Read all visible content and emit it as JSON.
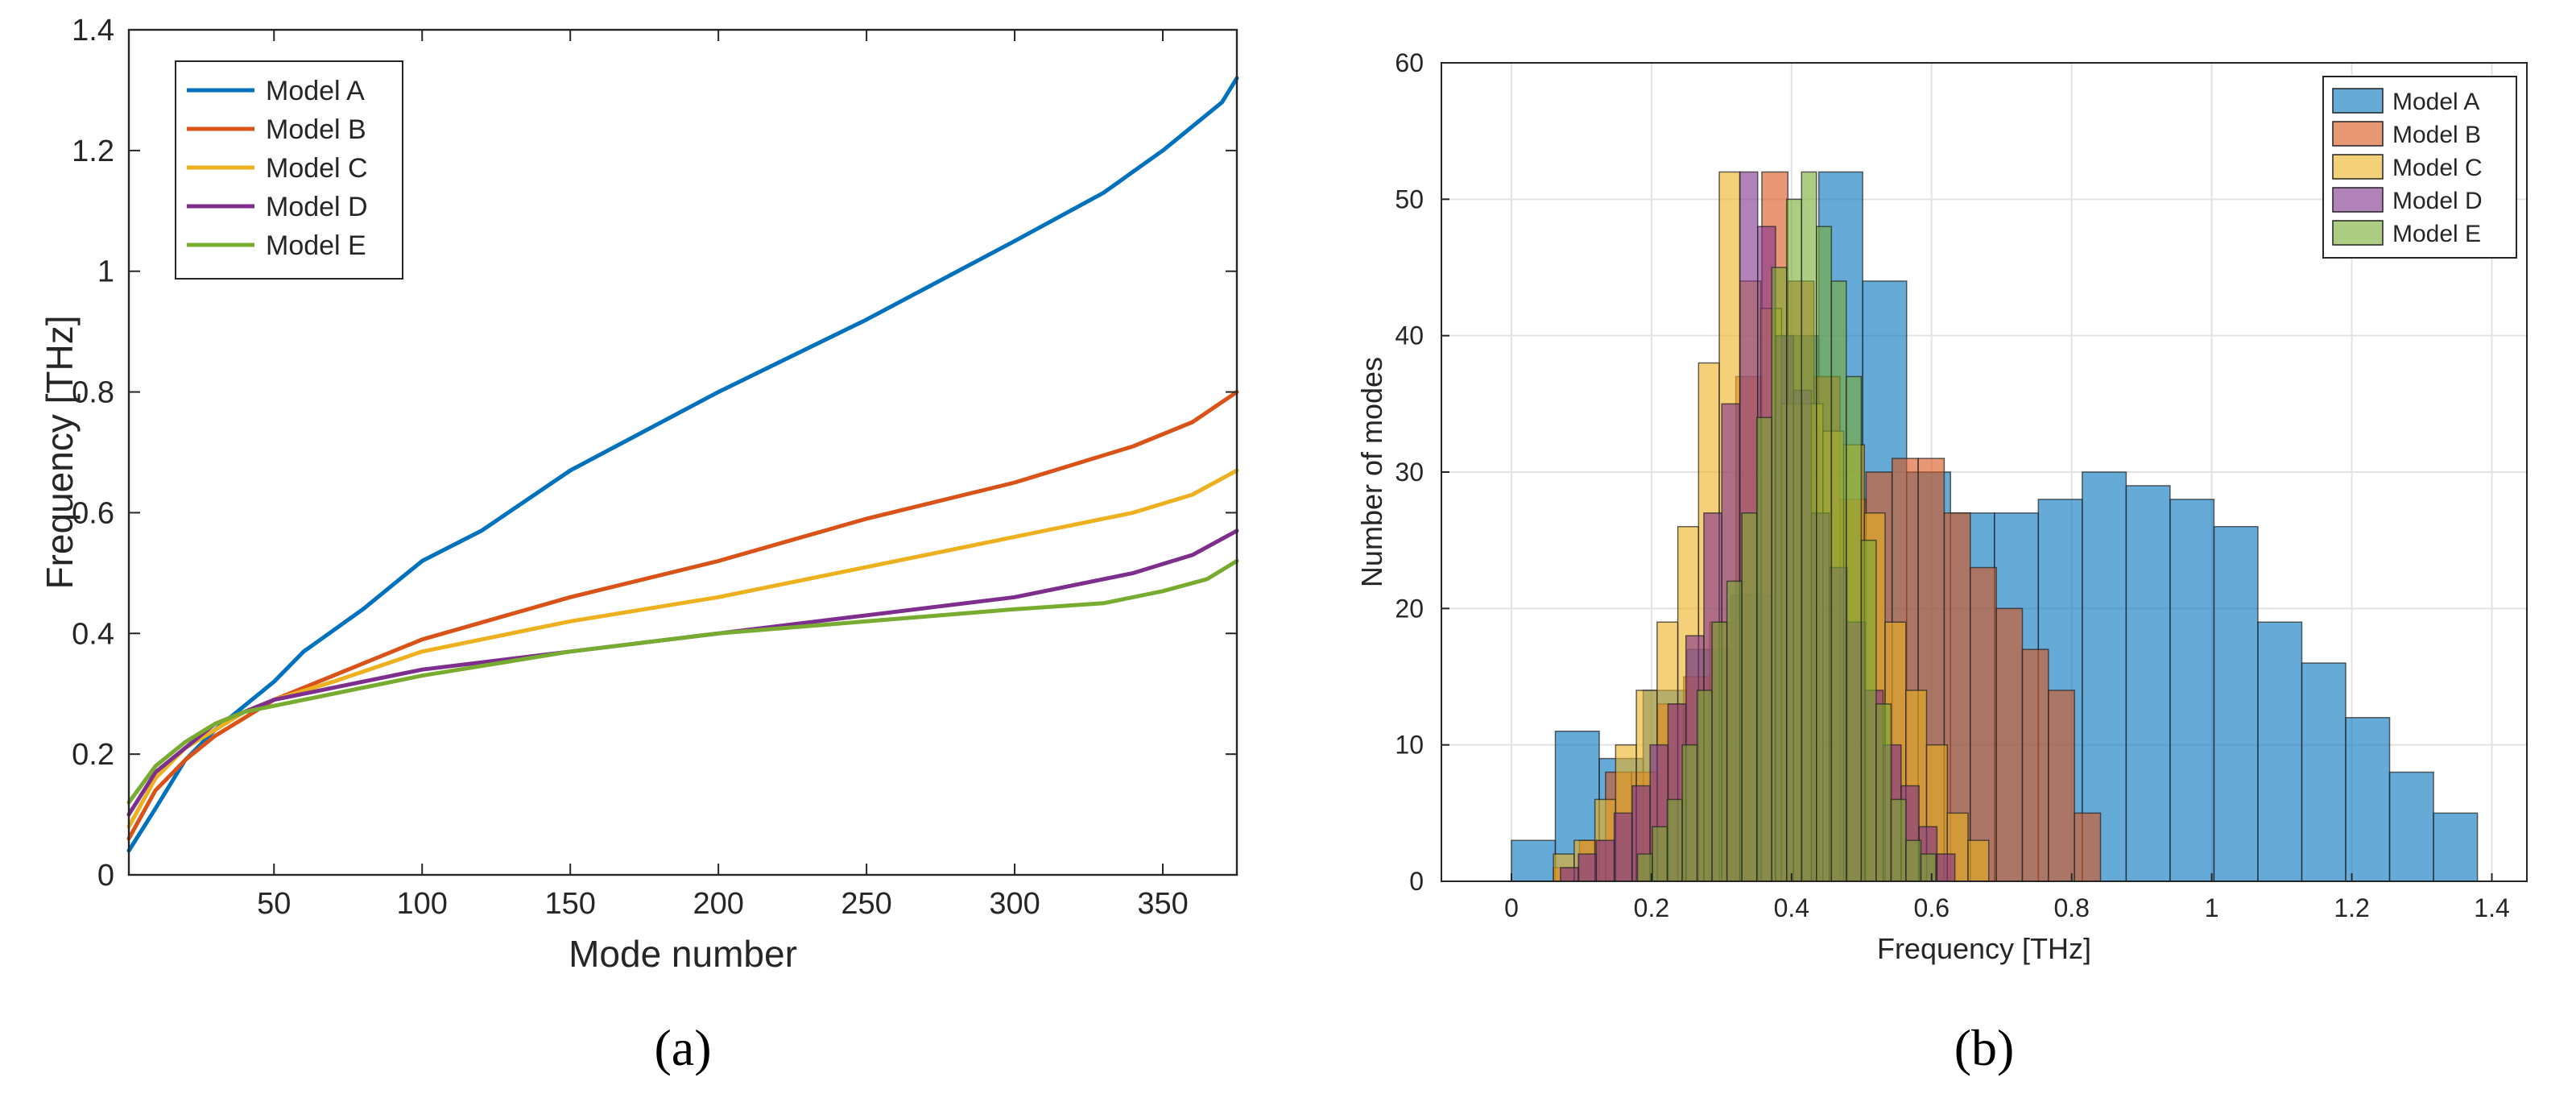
{
  "chart_data": [
    {
      "type": "line",
      "panel_label": "(a)",
      "xlabel": "Mode number",
      "ylabel": "Frequency [THz]",
      "xlim": [
        1,
        375
      ],
      "ylim": [
        0,
        1.4
      ],
      "xticks": [
        50,
        100,
        150,
        200,
        250,
        300,
        350
      ],
      "xtick_labels": [
        "50",
        "100",
        "150",
        "200",
        "250",
        "300",
        "350"
      ],
      "yticks": [
        0,
        0.2,
        0.4,
        0.6,
        0.8,
        1,
        1.2,
        1.4
      ],
      "ytick_labels": [
        "0",
        "0.2",
        "0.4",
        "0.6",
        "0.8",
        "1",
        "1.2",
        "1.4"
      ],
      "grid": false,
      "legend_position": "top-left",
      "series": [
        {
          "name": "Model A",
          "color": "#0072bd",
          "x": [
            1,
            10,
            20,
            30,
            40,
            50,
            60,
            80,
            100,
            120,
            150,
            200,
            250,
            300,
            330,
            350,
            370,
            375
          ],
          "y": [
            0.04,
            0.11,
            0.19,
            0.24,
            0.28,
            0.32,
            0.37,
            0.44,
            0.52,
            0.57,
            0.67,
            0.8,
            0.92,
            1.05,
            1.13,
            1.2,
            1.28,
            1.32
          ]
        },
        {
          "name": "Model B",
          "color": "#d95319",
          "x": [
            1,
            10,
            20,
            30,
            40,
            50,
            70,
            100,
            150,
            200,
            250,
            300,
            340,
            360,
            375
          ],
          "y": [
            0.06,
            0.14,
            0.19,
            0.23,
            0.26,
            0.29,
            0.33,
            0.39,
            0.46,
            0.52,
            0.59,
            0.65,
            0.71,
            0.75,
            0.8
          ]
        },
        {
          "name": "Model C",
          "color": "#edb120",
          "x": [
            1,
            10,
            20,
            30,
            40,
            50,
            70,
            100,
            150,
            200,
            250,
            300,
            340,
            360,
            375
          ],
          "y": [
            0.08,
            0.16,
            0.21,
            0.24,
            0.27,
            0.29,
            0.32,
            0.37,
            0.42,
            0.46,
            0.51,
            0.56,
            0.6,
            0.63,
            0.67
          ]
        },
        {
          "name": "Model D",
          "color": "#7e2f8e",
          "x": [
            1,
            10,
            20,
            30,
            40,
            50,
            70,
            100,
            150,
            200,
            250,
            300,
            340,
            360,
            375
          ],
          "y": [
            0.1,
            0.17,
            0.21,
            0.25,
            0.27,
            0.29,
            0.31,
            0.34,
            0.37,
            0.4,
            0.43,
            0.46,
            0.5,
            0.53,
            0.57
          ]
        },
        {
          "name": "Model E",
          "color": "#77ac30",
          "x": [
            1,
            10,
            20,
            30,
            40,
            50,
            70,
            100,
            150,
            200,
            250,
            300,
            330,
            350,
            365,
            375
          ],
          "y": [
            0.12,
            0.18,
            0.22,
            0.25,
            0.27,
            0.28,
            0.3,
            0.33,
            0.37,
            0.4,
            0.42,
            0.44,
            0.45,
            0.47,
            0.49,
            0.52
          ]
        }
      ]
    },
    {
      "type": "histogram",
      "panel_label": "(b)",
      "xlabel": "Frequency [THz]",
      "ylabel": "Number of modes",
      "xlim": [
        -0.1,
        1.45
      ],
      "ylim": [
        0,
        60
      ],
      "xticks": [
        0,
        0.2,
        0.4,
        0.6,
        0.8,
        1,
        1.2,
        1.4
      ],
      "xtick_labels": [
        "0",
        "0.2",
        "0.4",
        "0.6",
        "0.8",
        "1",
        "1.2",
        "1.4"
      ],
      "yticks": [
        0,
        10,
        20,
        30,
        40,
        50,
        60
      ],
      "ytick_labels": [
        "0",
        "10",
        "20",
        "30",
        "40",
        "50",
        "60"
      ],
      "grid": true,
      "legend_position": "top-right",
      "series": [
        {
          "name": "Model A",
          "color": "#0072bd",
          "bin_start": 0,
          "bin_width": 0.0627,
          "counts": [
            3,
            11,
            9,
            14,
            17,
            21,
            40,
            52,
            44,
            30,
            27,
            27,
            28,
            30,
            29,
            28,
            26,
            19,
            16,
            12,
            8,
            5
          ]
        },
        {
          "name": "Model B",
          "color": "#d95319",
          "bin_start": 0.06,
          "bin_width": 0.0372,
          "counts": [
            1,
            3,
            8,
            8,
            13,
            15,
            19,
            37,
            52,
            44,
            37,
            28,
            30,
            31,
            31,
            27,
            23,
            20,
            17,
            14,
            5
          ]
        },
        {
          "name": "Model C",
          "color": "#edb120",
          "bin_start": 0.06,
          "bin_width": 0.0296,
          "counts": [
            2,
            3,
            6,
            10,
            14,
            19,
            26,
            38,
            52,
            44,
            42,
            35,
            35,
            33,
            32,
            27,
            19,
            14,
            10,
            5,
            3
          ]
        },
        {
          "name": "Model D",
          "color": "#7e2f8e",
          "bin_start": 0.07,
          "bin_width": 0.0256,
          "counts": [
            1,
            2,
            3,
            5,
            7,
            10,
            13,
            18,
            27,
            35,
            52,
            48,
            40,
            36,
            27,
            23,
            19,
            14,
            10,
            7,
            4,
            2
          ]
        },
        {
          "name": "Model E",
          "color": "#77ac30",
          "bin_start": 0.18,
          "bin_width": 0.0213,
          "counts": [
            2,
            4,
            6,
            10,
            14,
            19,
            22,
            27,
            34,
            45,
            50,
            52,
            48,
            44,
            37,
            25,
            13,
            6,
            3,
            2
          ]
        }
      ]
    }
  ]
}
